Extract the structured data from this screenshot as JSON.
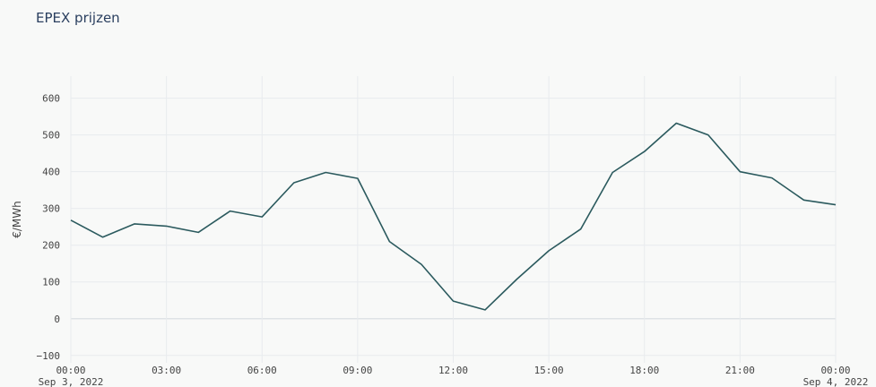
{
  "chart_data": {
    "type": "line",
    "title": "EPEX prijzen",
    "xlabel": "",
    "ylabel": "€/MWh",
    "ylim": [
      -120,
      660
    ],
    "yticks": [
      -100,
      0,
      100,
      200,
      300,
      400,
      500,
      600
    ],
    "xlim": [
      "2022-09-03 00:00",
      "2022-09-04 00:00"
    ],
    "xticks": [
      {
        "label": "00:00",
        "sublabel": "Sep 3, 2022",
        "hour": 0
      },
      {
        "label": "03:00",
        "sublabel": "",
        "hour": 3
      },
      {
        "label": "06:00",
        "sublabel": "",
        "hour": 6
      },
      {
        "label": "09:00",
        "sublabel": "",
        "hour": 9
      },
      {
        "label": "12:00",
        "sublabel": "",
        "hour": 12
      },
      {
        "label": "15:00",
        "sublabel": "",
        "hour": 15
      },
      {
        "label": "18:00",
        "sublabel": "",
        "hour": 18
      },
      {
        "label": "21:00",
        "sublabel": "",
        "hour": 21
      },
      {
        "label": "00:00",
        "sublabel": "Sep 4, 2022",
        "hour": 24
      }
    ],
    "grid": true,
    "line_color": "#2b5a5e",
    "series": [
      {
        "x": [
          "2022-09-03 00:00",
          "2022-09-03 01:00",
          "2022-09-03 02:00",
          "2022-09-03 03:00",
          "2022-09-03 04:00",
          "2022-09-03 05:00",
          "2022-09-03 06:00",
          "2022-09-03 07:00",
          "2022-09-03 08:00",
          "2022-09-03 09:00",
          "2022-09-03 10:00",
          "2022-09-03 11:00",
          "2022-09-03 12:00",
          "2022-09-03 13:00",
          "2022-09-03 14:00",
          "2022-09-03 15:00",
          "2022-09-03 16:00",
          "2022-09-03 17:00",
          "2022-09-03 18:00",
          "2022-09-03 19:00",
          "2022-09-03 20:00",
          "2022-09-03 21:00",
          "2022-09-03 22:00",
          "2022-09-03 23:00",
          "2022-09-04 00:00"
        ],
        "values": [
          268,
          222,
          258,
          252,
          235,
          293,
          277,
          370,
          398,
          382,
          210,
          148,
          48,
          24,
          108,
          185,
          244,
          398,
          455,
          532,
          500,
          400,
          383,
          323,
          310
        ]
      }
    ]
  }
}
